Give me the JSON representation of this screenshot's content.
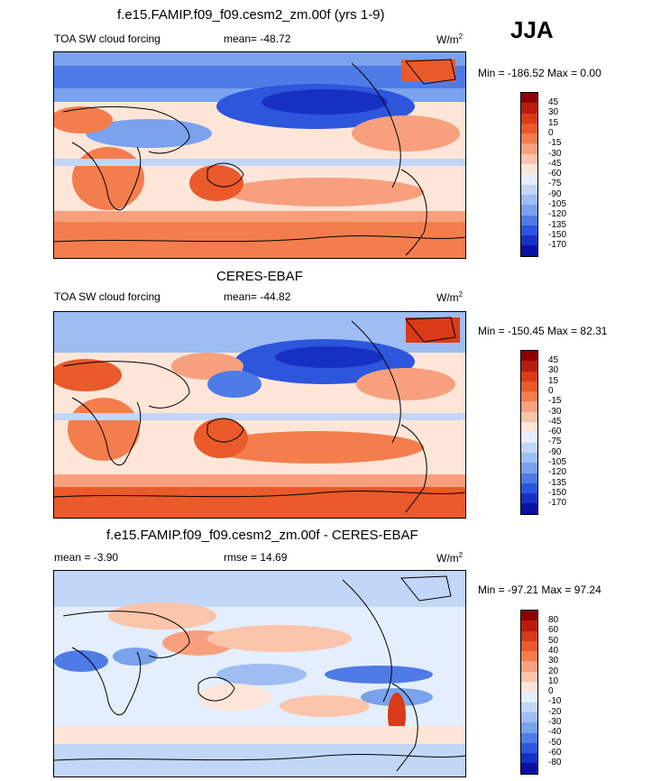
{
  "season": "JJA",
  "chart_data": [
    {
      "type": "heatmap",
      "title": "f.e15.FAMIP.f09_f09.cesm2_zm.00f (yrs 1-9)",
      "left_label": "TOA SW cloud forcing",
      "center_label": "mean= -48.72",
      "units": "W/m",
      "units_sup": "2",
      "range_text": "Min = -186.52 Max =   0.00",
      "colorbar_labels": [
        "45",
        "30",
        "15",
        "0",
        "-15",
        "-30",
        "-45",
        "-60",
        "-75",
        "-90",
        "-105",
        "-120",
        "-135",
        "-150",
        "-170"
      ],
      "colorbar_colors": [
        "#8b0000",
        "#b71c0c",
        "#d93a17",
        "#ea5a2a",
        "#f47d4d",
        "#f8a07d",
        "#fbc5ab",
        "#fde6d8",
        "#e4eefc",
        "#c2d6f7",
        "#9ebdf2",
        "#7aa2ed",
        "#4f7be6",
        "#2d56dd",
        "#1730c4",
        "#0a10a0"
      ]
    },
    {
      "type": "heatmap",
      "title": "CERES-EBAF",
      "left_label": "TOA SW cloud forcing",
      "center_label": "mean= -44.82",
      "units": "W/m",
      "units_sup": "2",
      "range_text": "Min = -150.45 Max =  82.31",
      "colorbar_labels": [
        "45",
        "30",
        "15",
        "0",
        "-15",
        "-30",
        "-45",
        "-60",
        "-75",
        "-90",
        "-105",
        "-120",
        "-135",
        "-150",
        "-170"
      ],
      "colorbar_colors": [
        "#8b0000",
        "#b71c0c",
        "#d93a17",
        "#ea5a2a",
        "#f47d4d",
        "#f8a07d",
        "#fbc5ab",
        "#fde6d8",
        "#e4eefc",
        "#c2d6f7",
        "#9ebdf2",
        "#7aa2ed",
        "#4f7be6",
        "#2d56dd",
        "#1730c4",
        "#0a10a0"
      ]
    },
    {
      "type": "heatmap",
      "title": "f.e15.FAMIP.f09_f09.cesm2_zm.00f - CERES-EBAF",
      "left_label": "mean =  -3.90",
      "center_label": "rmse =  14.69",
      "units": "W/m",
      "units_sup": "2",
      "range_text": "Min = -97.21 Max =  97.24",
      "colorbar_labels": [
        "80",
        "60",
        "50",
        "40",
        "30",
        "20",
        "10",
        "0",
        "-10",
        "-20",
        "-30",
        "-40",
        "-50",
        "-60",
        "-80"
      ],
      "colorbar_colors": [
        "#8b0000",
        "#b71c0c",
        "#d93a17",
        "#ea5a2a",
        "#f47d4d",
        "#f8a07d",
        "#fbc5ab",
        "#fde6d8",
        "#e4eefc",
        "#c2d6f7",
        "#9ebdf2",
        "#7aa2ed",
        "#4f7be6",
        "#2d56dd",
        "#1730c4",
        "#0a10a0"
      ]
    }
  ]
}
